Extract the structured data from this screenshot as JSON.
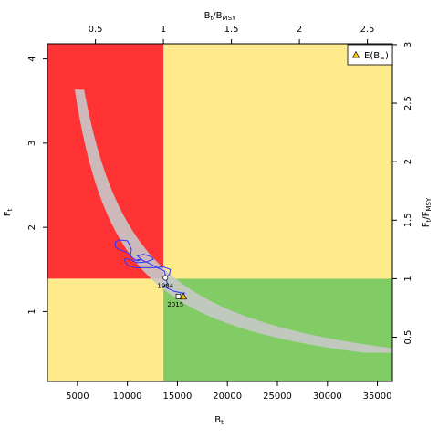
{
  "chart_data": {
    "type": "line",
    "title": "",
    "colors": {
      "red_zone": "#ff3333",
      "yellow_zone": "#ffea8c",
      "green_zone": "#82cc66",
      "band": "#c8c8c8",
      "trajectory": "#3333ff",
      "marker_fill": "#ffffff",
      "equilibrium_marker": "#ffcc00"
    },
    "x_axis": {
      "label_main": "B",
      "label_sub": "t",
      "range": [
        2000,
        36500
      ],
      "ticks": [
        5000,
        10000,
        15000,
        20000,
        25000,
        30000,
        35000
      ],
      "tick_labels": [
        "5000",
        "10000",
        "15000",
        "20000",
        "25000",
        "30000",
        "35000"
      ]
    },
    "y_axis": {
      "label_main": "F",
      "label_sub": "t",
      "range": [
        0.17,
        4.18
      ],
      "ticks": [
        1,
        2,
        3,
        4
      ],
      "tick_labels": [
        "1",
        "2",
        "3",
        "4"
      ]
    },
    "x_axis_top": {
      "label_main": "B",
      "label_sub": "t",
      "label_den": "B",
      "label_den_sub": "MSY",
      "ticks": [
        0.5,
        1,
        1.5,
        2,
        2.5
      ],
      "tick_labels": [
        "0.5",
        "1",
        "1.5",
        "2",
        "2.5"
      ]
    },
    "y_axis_right": {
      "label_main": "F",
      "label_sub": "t",
      "label_den": "F",
      "label_den_sub": "MSY",
      "ticks": [
        0.5,
        1,
        1.5,
        2,
        2.5,
        3
      ],
      "tick_labels": [
        "0.5",
        "1",
        "1.5",
        "2",
        "2.5",
        "3"
      ]
    },
    "reference_points": {
      "BMSY": 13600,
      "FMSY": 1.39
    },
    "legend": {
      "position": "top-right",
      "label_main": "E(B",
      "label_sub": "∞",
      "label_end": ")"
    },
    "trajectory": {
      "x": [
        13800,
        14200,
        14300,
        13600,
        12700,
        11700,
        10800,
        10000,
        9700,
        9800,
        10200,
        11000,
        11900,
        12600,
        12400,
        11600,
        11000,
        11400,
        11000,
        10600,
        10000,
        9100,
        8800,
        8800,
        9200,
        10000,
        10400,
        10300,
        10800,
        11300,
        12200,
        13000,
        13700,
        14000,
        13600,
        14700,
        15500,
        15800
      ],
      "y": [
        1.4,
        1.44,
        1.5,
        1.53,
        1.52,
        1.52,
        1.52,
        1.55,
        1.61,
        1.63,
        1.62,
        1.58,
        1.59,
        1.62,
        1.65,
        1.68,
        1.66,
        1.62,
        1.6,
        1.63,
        1.7,
        1.74,
        1.77,
        1.83,
        1.85,
        1.84,
        1.74,
        1.66,
        1.61,
        1.62,
        1.57,
        1.52,
        1.48,
        1.33,
        1.3,
        1.24,
        1.22,
        1.22
      ]
    },
    "annotations": [
      {
        "text": "1984",
        "x": 13800,
        "y": 1.4
      },
      {
        "text": "2015",
        "x": 14800,
        "y": 1.18
      }
    ],
    "equilibrium": {
      "x": 15600,
      "y": 1.18
    }
  }
}
